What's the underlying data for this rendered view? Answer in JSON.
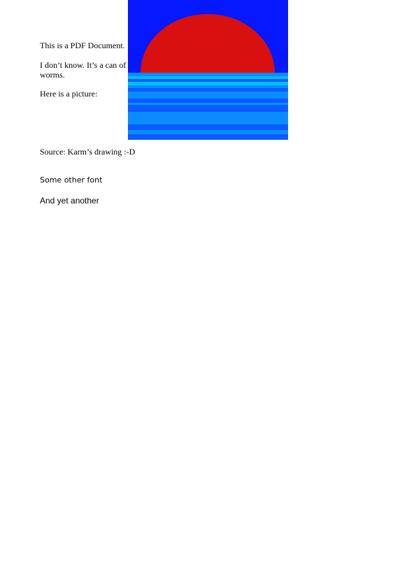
{
  "document": {
    "paragraphs": {
      "p1": "This is a PDF Document.",
      "p2": "I don’t know. It’s a can of worms.",
      "p3": "Here is a picture:"
    },
    "source": "Source: Karm’s drawing :-D",
    "font_sample_2": "Some other font",
    "font_sample_3": "And yet another"
  },
  "picture": {
    "sky_color": "#0618FD",
    "sun_color": "#D81010",
    "water_colors": [
      "#0A5CFF",
      "#0A8CFF",
      "#00BFFF"
    ]
  }
}
